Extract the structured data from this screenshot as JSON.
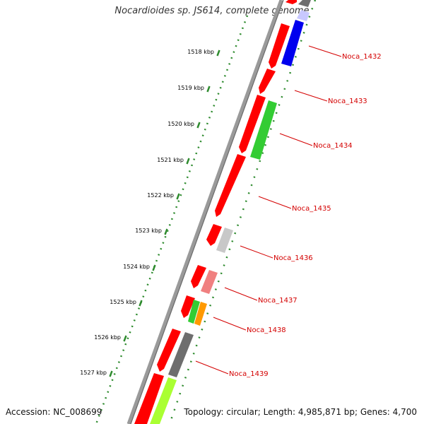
{
  "title": "Nocardioides sp. JS614, complete genome",
  "footer": {
    "accession": "Accession: NC_008699",
    "topology": "Topology: circular; Length: 4,985,871 bp; Genes: 4,700"
  },
  "ticks": [
    {
      "label": "1518 kbp"
    },
    {
      "label": "1519 kbp"
    },
    {
      "label": "1520 kbp"
    },
    {
      "label": "1521 kbp"
    },
    {
      "label": "1522 kbp"
    },
    {
      "label": "1523 kbp"
    },
    {
      "label": "1524 kbp"
    },
    {
      "label": "1525 kbp"
    },
    {
      "label": "1526 kbp"
    },
    {
      "label": "1527 kbp"
    }
  ],
  "gene_labels": [
    "Noca_1432",
    "Noca_1433",
    "Noca_1434",
    "Noca_1435",
    "Noca_1436",
    "Noca_1437",
    "Noca_1438",
    "Noca_1439"
  ],
  "colors": {
    "cds": "#ff0000",
    "backbone": "#808080",
    "dots": "#2e8b2e",
    "label": "#d40000",
    "blue": "#0000ee",
    "green": "#33cc33",
    "gray": "#6e6e6e",
    "lightgray": "#c8c8c8",
    "pink": "#f08080",
    "orange": "#ff9900",
    "lime": "#aaff33",
    "lightblue": "#c8c8ff"
  }
}
